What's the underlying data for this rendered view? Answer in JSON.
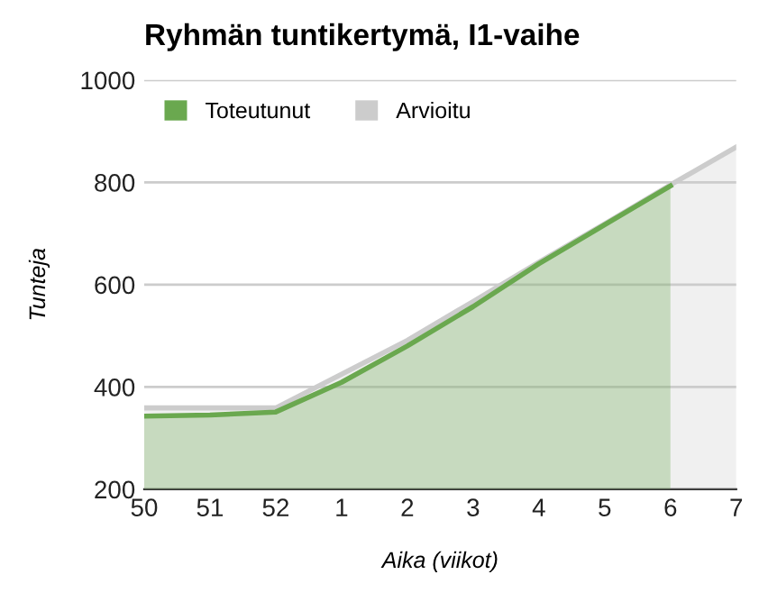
{
  "chart_data": {
    "type": "area",
    "title": "Ryhmän tuntikertymä, I1-vaihe",
    "xlabel": "Aika (viikot)",
    "ylabel": "Tunteja",
    "categories": [
      "50",
      "51",
      "52",
      "1",
      "2",
      "3",
      "4",
      "5",
      "6",
      "7"
    ],
    "series": [
      {
        "name": "Toteutunut",
        "color": "#6aa84f",
        "values": [
          343,
          345,
          351,
          409,
          480,
          557,
          641,
          717,
          793,
          null
        ]
      },
      {
        "name": "Arvioitu",
        "color": "#cccccc",
        "values": [
          359,
          359,
          359,
          425,
          491,
          567,
          644,
          719,
          795,
          869
        ]
      }
    ],
    "ylim": [
      200,
      1000
    ],
    "yticks": [
      200,
      400,
      600,
      800,
      1000
    ],
    "grid": "y",
    "legend": "top left"
  }
}
